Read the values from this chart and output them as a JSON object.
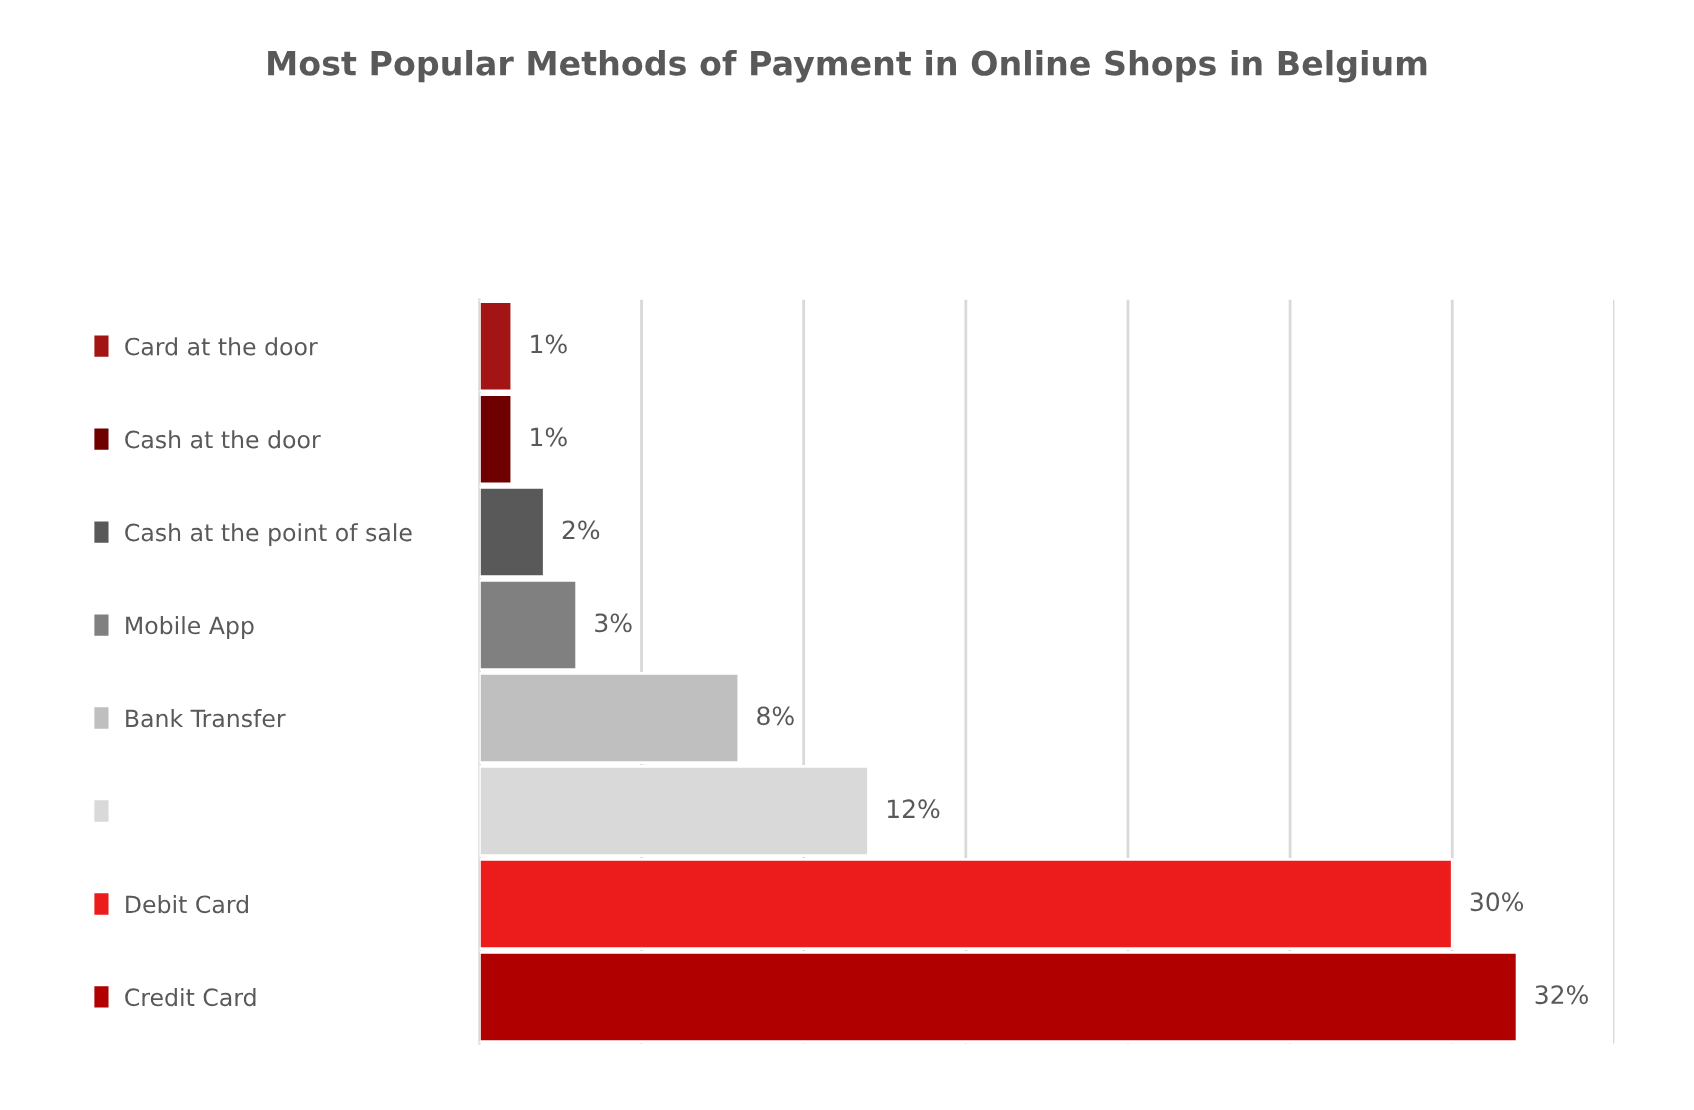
{
  "chart_data": {
    "type": "bar",
    "orientation": "horizontal",
    "title": "Most Popular Methods of Payment in Online Shops in Belgium",
    "categories": [
      "Card at the door",
      "Cash at the door",
      "Cash at the point of sale",
      "Mobile App",
      "Bank Transfer",
      null,
      "Debit Card",
      "Credit Card"
    ],
    "values": [
      1,
      1,
      2,
      3,
      8,
      12,
      30,
      32
    ],
    "colors": [
      "#a31515",
      "#6e0000",
      "#595959",
      "#808080",
      "#bfbfbf",
      "#d9d9d9",
      "#ed1c1c",
      "#b00000"
    ],
    "xlim": [
      0,
      35
    ],
    "xticks": [
      {
        "value": 0,
        "label": null
      },
      {
        "value": 5,
        "label": null
      },
      {
        "value": 10,
        "label": null
      },
      {
        "value": 15,
        "label": null
      },
      {
        "value": 20,
        "label": null
      },
      {
        "value": 25,
        "label": null
      },
      {
        "value": 30,
        "label": null
      },
      {
        "value": 35,
        "label": null
      }
    ],
    "value_labels": [
      "1%",
      "1%",
      "2%",
      "3%",
      "8%",
      "12%",
      "30%",
      "32%"
    ],
    "grid": "x",
    "tick_labels": "y"
  }
}
